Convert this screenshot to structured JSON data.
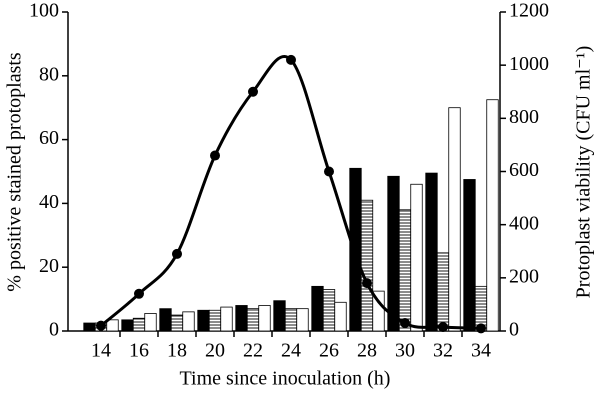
{
  "chart_data": {
    "type": "bar-line",
    "xlabel": "Time since inoculation (h)",
    "ylabel": "% positive stained protoplasts",
    "y2label": "Protoplast viability (CFU ml⁻¹)",
    "categories": [
      "14",
      "16",
      "18",
      "20",
      "22",
      "24",
      "26",
      "28",
      "30",
      "32",
      "34"
    ],
    "series": [
      {
        "type": "bar",
        "color": "#000000",
        "pattern": "solid",
        "values": [
          2.5,
          3.5,
          7,
          6.5,
          8,
          9.5,
          14,
          51,
          48.5,
          49.5,
          47.5
        ]
      },
      {
        "type": "bar",
        "color": "#000000",
        "pattern": "horizontal-lines",
        "values": [
          2.5,
          4,
          5,
          6.5,
          7,
          7,
          13,
          41,
          38,
          24.5,
          14
        ]
      },
      {
        "type": "bar",
        "color": "#ffffff",
        "pattern": "solid",
        "values": [
          3.5,
          5.5,
          6,
          7.5,
          8,
          7,
          9,
          12.5,
          46,
          70,
          72.5
        ]
      },
      {
        "type": "line",
        "axis": "y2",
        "color": "#000000",
        "values": [
          20,
          140,
          290,
          660,
          900,
          1020,
          600,
          180,
          30,
          15,
          10
        ]
      }
    ],
    "ylim": [
      0,
      100
    ],
    "yticks": [
      0,
      20,
      40,
      60,
      80,
      100
    ],
    "y2lim": [
      0,
      1200
    ],
    "y2ticks": [
      0,
      200,
      400,
      600,
      800,
      1000,
      1200
    ]
  }
}
